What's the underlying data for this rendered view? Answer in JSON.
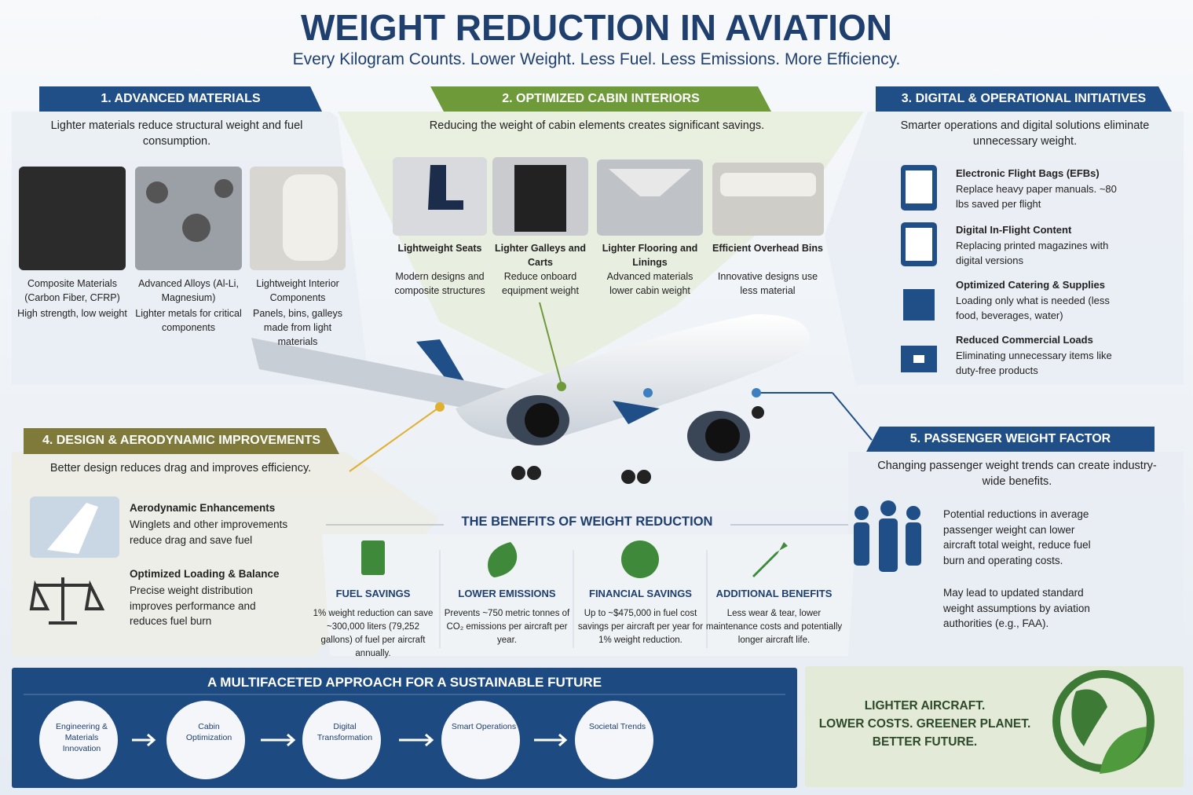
{
  "header": {
    "title": "WEIGHT REDUCTION IN AVIATION",
    "subtitle": "Every Kilogram Counts. Lower Weight. Less Fuel. Less Emissions. More Efficiency."
  },
  "sections": [
    {
      "title": "1. ADVANCED MATERIALS",
      "intro": "Lighter materials reduce structural weight and fuel consumption.",
      "items": [
        {
          "title": "Composite Materials (Carbon Fiber, CFRP)",
          "text": "High strength, low weight"
        },
        {
          "title": "Advanced Alloys (Al-Li, Magnesium)",
          "text": "Lighter metals for critical components"
        },
        {
          "title": "Lightweight Interior Components",
          "text": "Panels, bins, galleys made from light materials"
        }
      ]
    },
    {
      "title": "2. OPTIMIZED CABIN INTERIORS",
      "intro": "Reducing the weight of cabin elements creates significant savings.",
      "items": [
        {
          "title": "Lightweight Seats",
          "text": "Modern designs and composite structures"
        },
        {
          "title": "Lighter Galleys and Carts",
          "text": "Reduce onboard equipment weight"
        },
        {
          "title": "Lighter Flooring and Linings",
          "text": "Advanced materials lower cabin weight"
        },
        {
          "title": "Efficient Overhead Bins",
          "text": "Innovative designs use less material"
        }
      ]
    },
    {
      "title": "3. DIGITAL & OPERATIONAL INITIATIVES",
      "intro": "Smarter operations and digital solutions eliminate unnecessary weight.",
      "items": [
        {
          "title": "Electronic Flight Bags (EFBs)",
          "text": "Replace heavy paper manuals. ~80 lbs saved per flight"
        },
        {
          "title": "Digital In-Flight Content",
          "text": "Replacing printed magazines with digital versions"
        },
        {
          "title": "Optimized Catering & Supplies",
          "text": "Loading only what is needed (less food, beverages, water)"
        },
        {
          "title": "Reduced Commercial Loads",
          "text": "Eliminating unnecessary items like duty-free products"
        }
      ]
    },
    {
      "title": "4. DESIGN & AERODYNAMIC IMPROVEMENTS",
      "intro": "Better design reduces drag and improves efficiency.",
      "items": [
        {
          "title": "Aerodynamic Enhancements",
          "text": "Winglets and other improvements reduce drag and save fuel"
        },
        {
          "title": "Optimized Loading & Balance",
          "text": "Precise weight distribution improves performance and reduces fuel burn"
        }
      ]
    },
    {
      "title": "5. PASSENGER WEIGHT FACTOR",
      "intro": "Changing passenger weight trends can create industry-wide benefits.",
      "paragraphs": [
        "Potential reductions in average passenger weight can lower aircraft total weight, reduce fuel burn and operating costs.",
        "May lead to updated standard weight assumptions by aviation authorities (e.g., FAA)."
      ]
    }
  ],
  "benefits": {
    "title": "THE BENEFITS OF WEIGHT REDUCTION",
    "items": [
      {
        "title": "FUEL SAVINGS",
        "text": "1% weight reduction can save ~300,000 liters (79,252 gallons) of fuel per aircraft annually."
      },
      {
        "title": "LOWER EMISSIONS",
        "text": "Prevents ~750 metric tonnes of CO₂ emissions per aircraft per year."
      },
      {
        "title": "FINANCIAL SAVINGS",
        "text": "Up to ~$475,000 in fuel cost savings per aircraft per year for 1% weight reduction."
      },
      {
        "title": "ADDITIONAL BENEFITS",
        "text": "Less wear & tear, lower maintenance costs and potentially longer aircraft life."
      }
    ]
  },
  "approach": {
    "title": "A MULTIFACETED APPROACH FOR A SUSTAINABLE FUTURE",
    "steps": [
      "Engineering & Materials Innovation",
      "Cabin Optimization",
      "Digital Transformation",
      "Smart Operations",
      "Societal Trends"
    ]
  },
  "slogan": {
    "lines": [
      "LIGHTER AIRCRAFT.",
      "LOWER COSTS. GREENER PLANET.",
      "BETTER FUTURE."
    ]
  }
}
